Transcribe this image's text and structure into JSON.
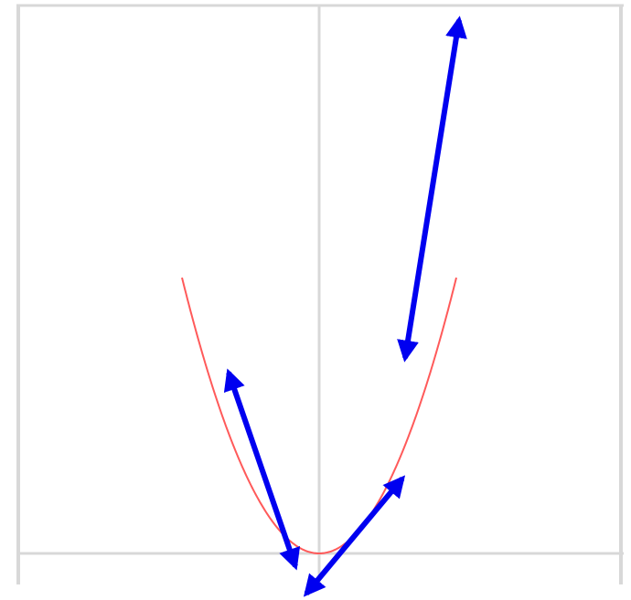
{
  "colors": {
    "background": "#ffffff",
    "grid": "#d8d8d8",
    "curve": "#ff5a5a",
    "arrow": "#0000f0"
  },
  "curve": {
    "kind": "parabola",
    "equation": "y = x^2"
  },
  "tangent_arrows": [
    {
      "at_x": -0.35
    },
    {
      "at_x": 0.45
    },
    {
      "at_x": 1.2
    }
  ]
}
